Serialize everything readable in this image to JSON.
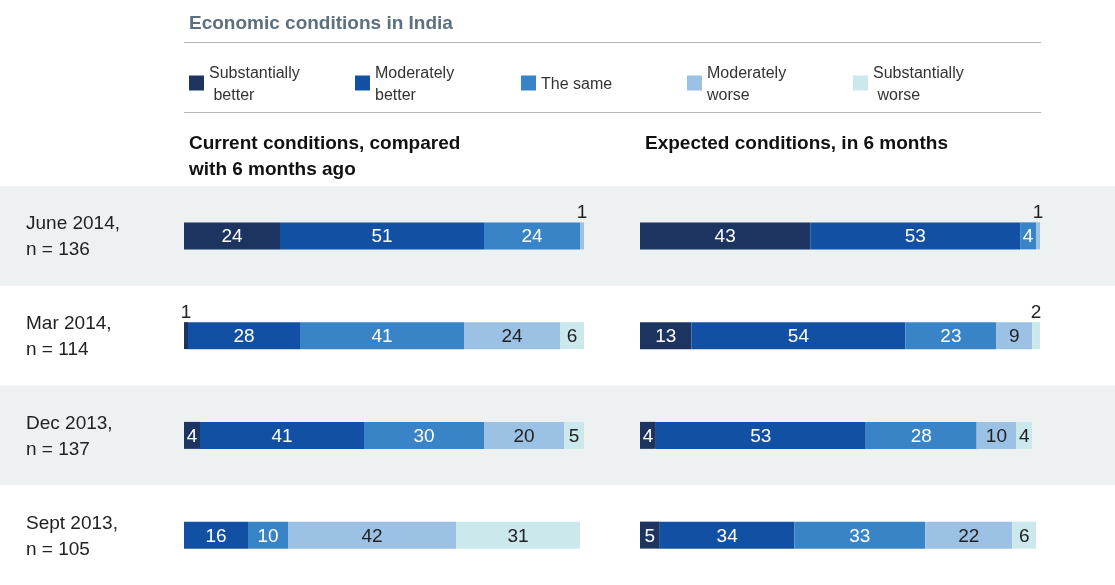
{
  "chart_data": [
    {
      "type": "bar",
      "orientation": "horizontal",
      "stacked": true,
      "title": "Economic conditions in India",
      "subtitle": "Current conditions, compared with 6 months ago",
      "categories": [
        "June 2014,\nn = 136",
        "Mar 2014,\nn = 114",
        "Dec 2013,\nn = 137",
        "Sept 2013,\nn = 105"
      ],
      "series": [
        {
          "name": "Substantially better",
          "color": "#1d3461",
          "values": [
            24,
            1,
            4,
            null
          ]
        },
        {
          "name": "Moderately better",
          "color": "#1150a2",
          "values": [
            51,
            28,
            41,
            16
          ]
        },
        {
          "name": "The same",
          "color": "#3884c6",
          "values": [
            24,
            41,
            30,
            10
          ]
        },
        {
          "name": "Moderately worse",
          "color": "#9bc1e4",
          "values": [
            1,
            24,
            20,
            42
          ]
        },
        {
          "name": "Substantially worse",
          "color": "#cbe8ec",
          "values": [
            null,
            6,
            5,
            31
          ]
        }
      ],
      "bands": [
        {
          "axis": "y",
          "from": "June 2014,\nn = 136",
          "to": "June 2014,\nn = 136",
          "color": "#edf1f2"
        },
        {
          "axis": "y",
          "from": "Dec 2013,\nn = 137",
          "to": "Dec 2013,\nn = 137",
          "color": "#edf1f2"
        }
      ],
      "data_labels": true,
      "legend": "top",
      "tick_labels": "y"
    },
    {
      "type": "bar",
      "orientation": "horizontal",
      "stacked": true,
      "subtitle": "Expected conditions, in 6 months",
      "categories": [
        null,
        null,
        null,
        null
      ],
      "series": [
        {
          "color": "#1d3461",
          "values": [
            43,
            13,
            4,
            5
          ]
        },
        {
          "color": "#1150a2",
          "values": [
            53,
            54,
            53,
            34
          ]
        },
        {
          "color": "#3884c6",
          "values": [
            4,
            23,
            28,
            33
          ]
        },
        {
          "color": "#9bc1e4",
          "values": [
            1,
            9,
            10,
            22
          ]
        },
        {
          "color": "#cbe8ec",
          "values": [
            null,
            2,
            4,
            6
          ]
        }
      ],
      "data_labels": true,
      "legend": false,
      "tick_labels": false
    }
  ]
}
